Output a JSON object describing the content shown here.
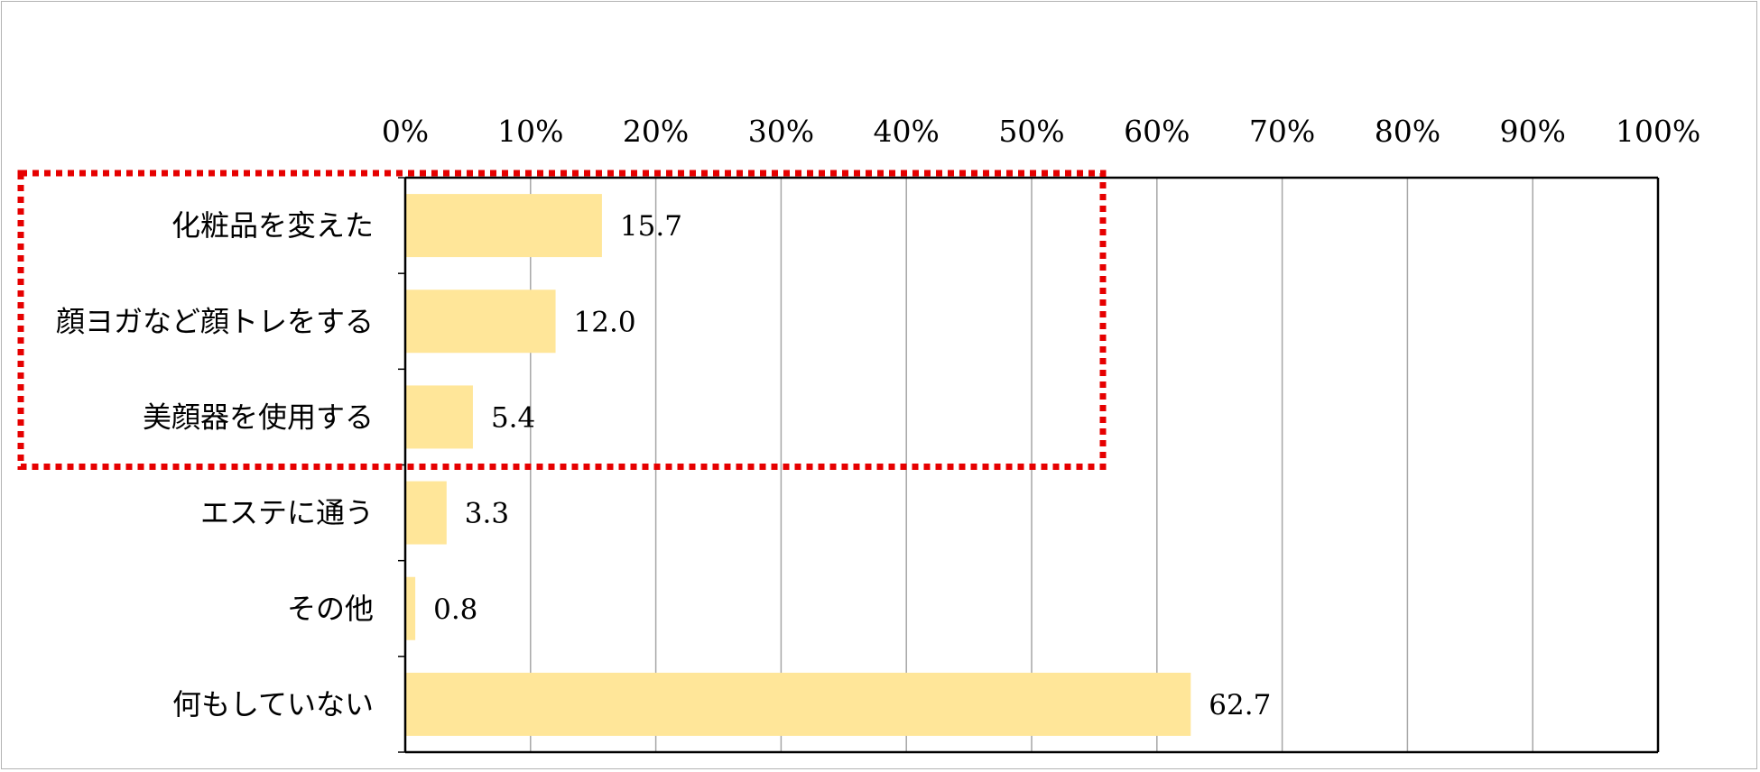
{
  "chart_data": {
    "type": "bar",
    "orientation": "horizontal",
    "title": "",
    "xlabel": "",
    "ylabel": "",
    "categories": [
      "化粧品を変えた",
      "顔ヨガなど顔トレをする",
      "美顔器を使用する",
      "エステに通う",
      "その他",
      "何もしていない"
    ],
    "values": [
      15.7,
      12.0,
      5.4,
      3.3,
      0.8,
      62.7
    ],
    "value_labels": [
      "15.7",
      "12.0",
      "5.4",
      "3.3",
      "0.8",
      "62.7"
    ],
    "xlim": [
      0,
      100
    ],
    "xticks": [
      "0%",
      "10%",
      "20%",
      "30%",
      "40%",
      "50%",
      "60%",
      "70%",
      "80%",
      "90%",
      "100%"
    ],
    "x_axis_position": "top",
    "grid": true,
    "legend": "none",
    "bar_color": "#ffe699",
    "highlight": {
      "categories": [
        "化粧品を変えた",
        "顔ヨガなど顔トレをする",
        "美顔器を使用する"
      ],
      "style": "dotted",
      "color": "#e60000"
    }
  }
}
